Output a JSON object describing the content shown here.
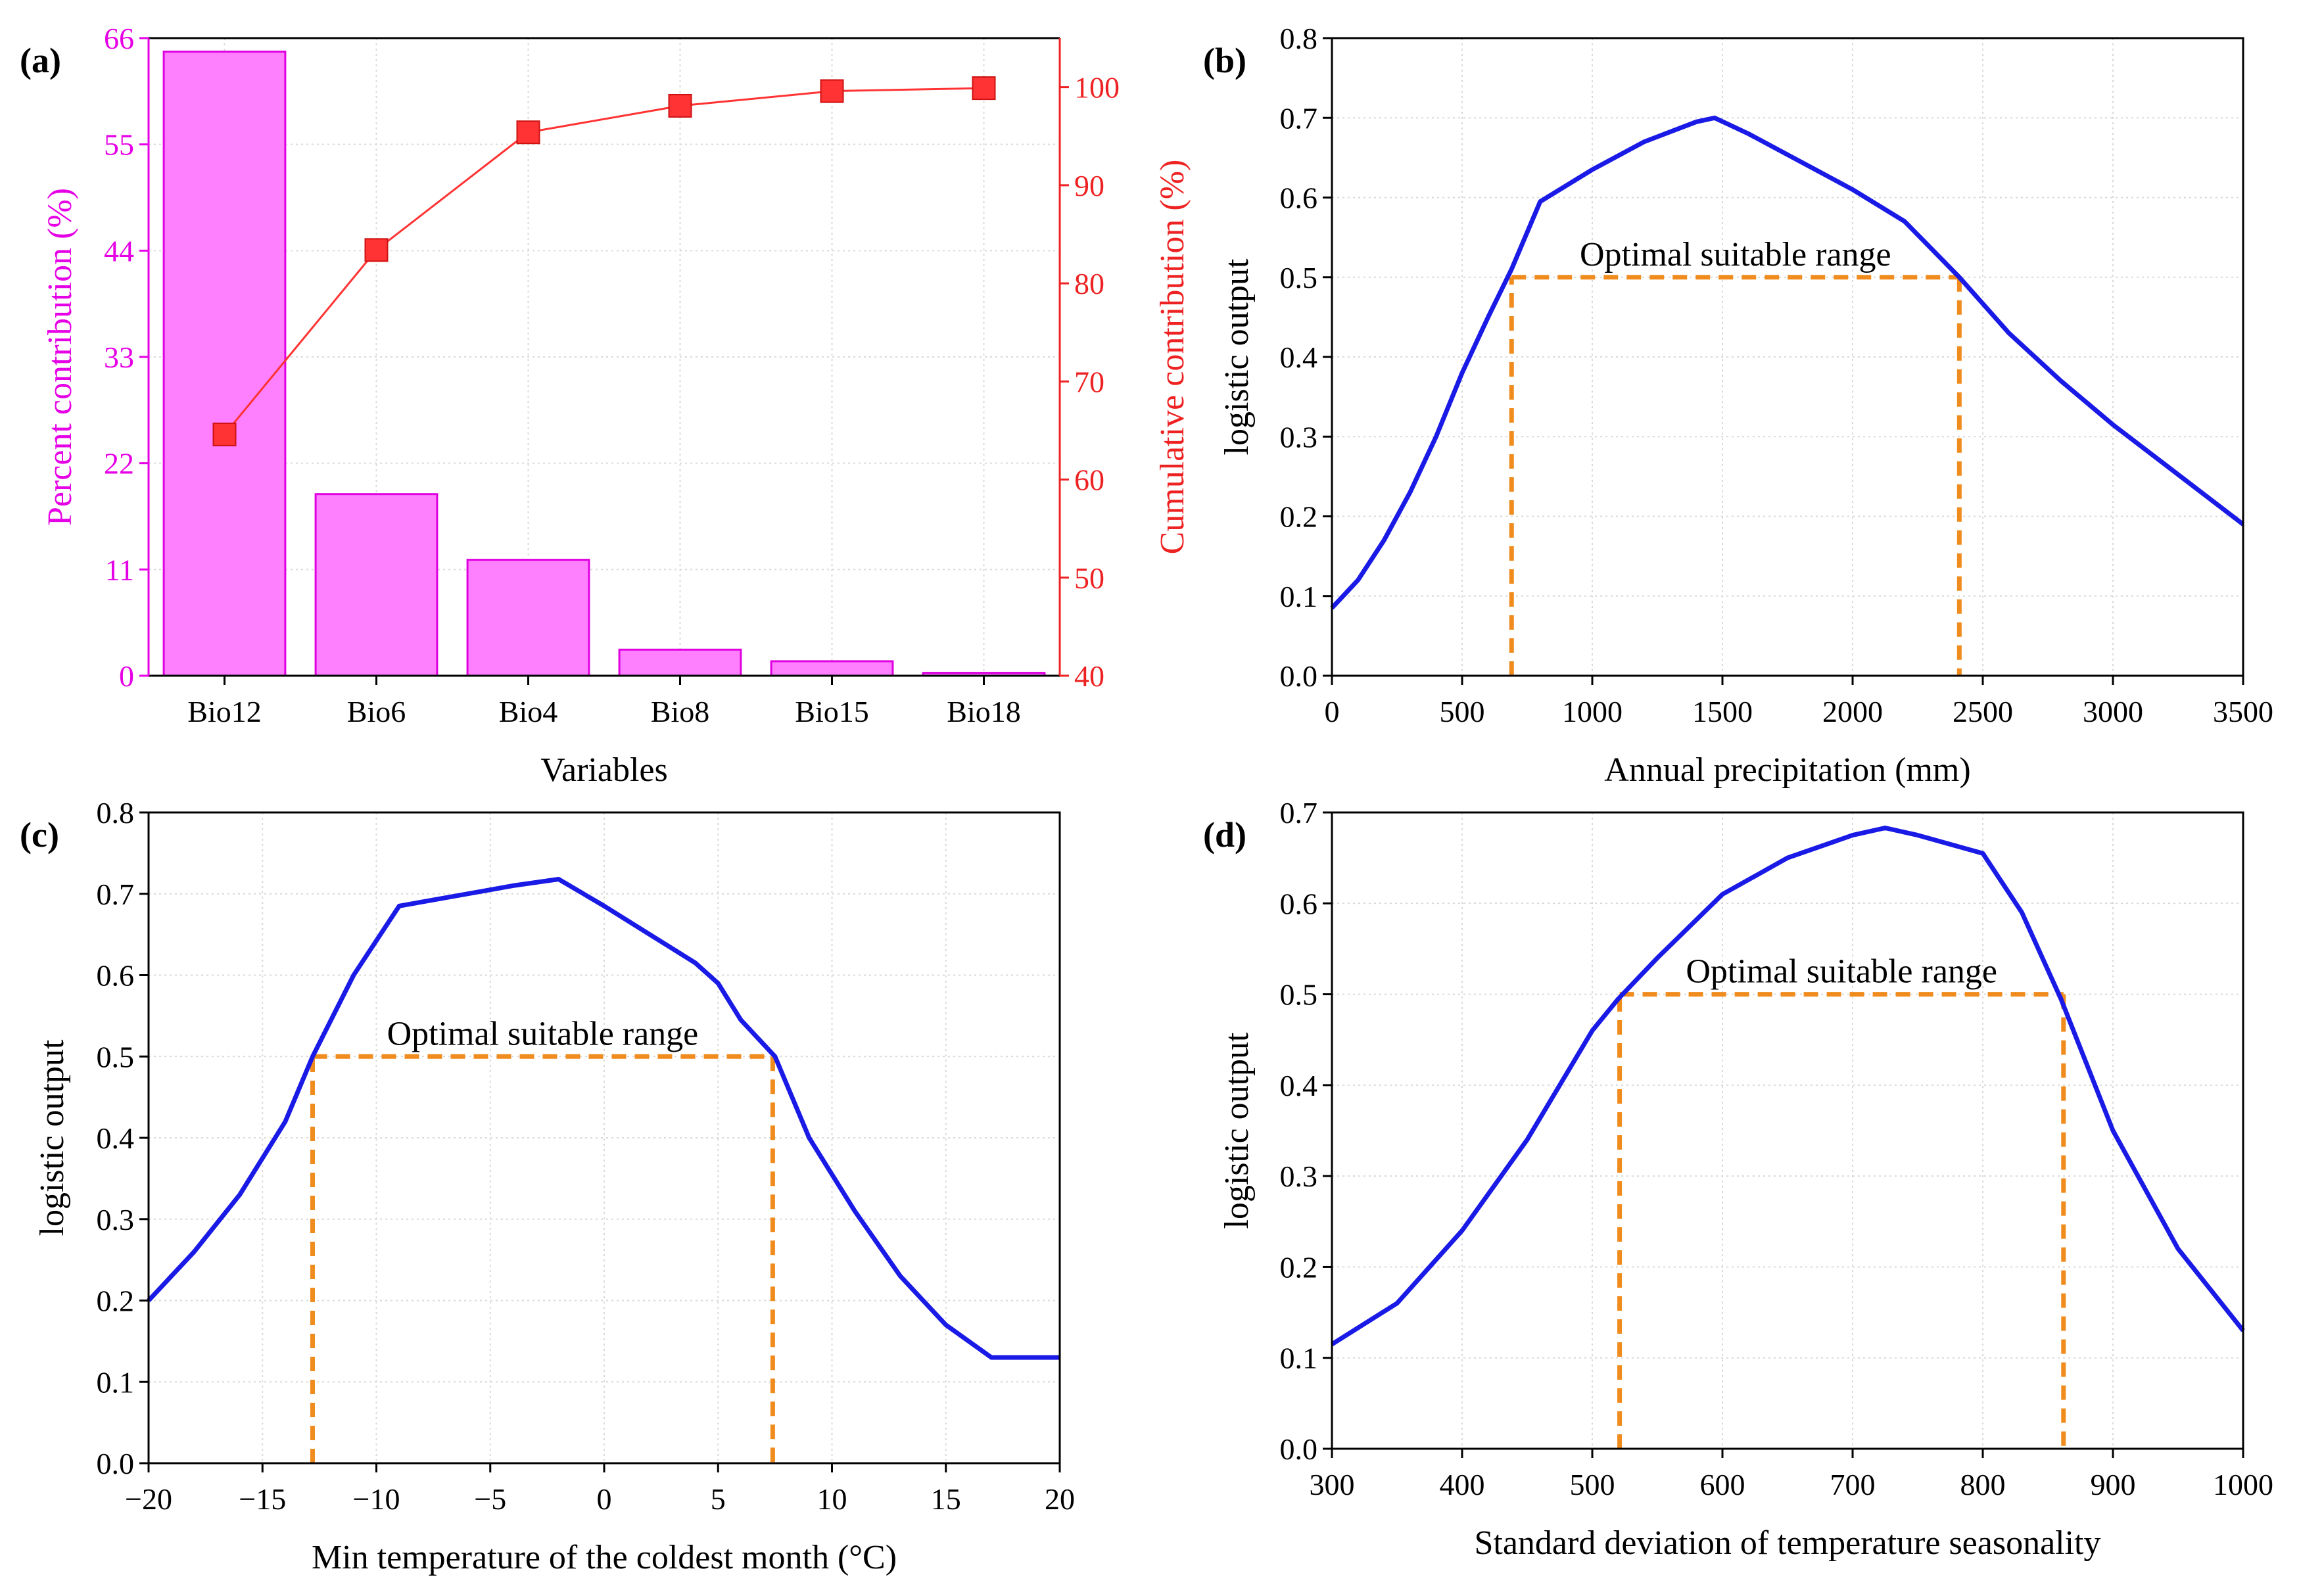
{
  "chart_data": [
    {
      "panel": "(a)",
      "type": "bar",
      "xlabel": "Variables",
      "ylabel": "Percent contribution (%)",
      "y2label": "Cumulative contribution (%)",
      "categories": [
        "Bio12",
        "Bio6",
        "Bio4",
        "Bio8",
        "Bio15",
        "Bio18"
      ],
      "ylim": [
        0,
        66
      ],
      "yticks": [
        "0",
        "11",
        "22",
        "33",
        "44",
        "55",
        "66"
      ],
      "y2lim": [
        40,
        105
      ],
      "y2ticks": [
        "40",
        "50",
        "60",
        "70",
        "80",
        "90",
        "100"
      ],
      "bar_values": [
        64.6,
        18.8,
        12.0,
        2.7,
        1.5,
        0.3
      ],
      "line_values": [
        64.6,
        83.4,
        95.4,
        98.1,
        99.6,
        99.9
      ],
      "bar_color": "#ff80ff",
      "bar_edge": "#e000e0",
      "line_color": "#ff3333",
      "left_axis_color": "#e600e6",
      "right_axis_color": "#ee2222",
      "grid": true
    },
    {
      "panel": "(b)",
      "type": "line",
      "xlabel": "Annual precipitation (mm)",
      "ylabel": "logistic output",
      "xlim": [
        0,
        3500
      ],
      "xticks": [
        "0",
        "500",
        "1000",
        "1500",
        "2000",
        "2500",
        "3000",
        "3500"
      ],
      "ylim": [
        0,
        0.8
      ],
      "yticks": [
        "0.0",
        "0.1",
        "0.2",
        "0.3",
        "0.4",
        "0.5",
        "0.6",
        "0.7",
        "0.8"
      ],
      "x": [
        0,
        100,
        200,
        300,
        400,
        500,
        600,
        690,
        800,
        1000,
        1200,
        1400,
        1470,
        1600,
        1800,
        2000,
        2200,
        2410,
        2600,
        2800,
        3000,
        3200,
        3400,
        3500
      ],
      "y": [
        0.085,
        0.12,
        0.17,
        0.23,
        0.3,
        0.38,
        0.45,
        0.51,
        0.595,
        0.635,
        0.67,
        0.695,
        0.7,
        0.68,
        0.645,
        0.61,
        0.57,
        0.5,
        0.43,
        0.37,
        0.315,
        0.265,
        0.215,
        0.19
      ],
      "range_label": "Optimal suitable range",
      "range": [
        690,
        2410
      ],
      "threshold": 0.5,
      "grid": true
    },
    {
      "panel": "(c)",
      "type": "line",
      "xlabel": "Min temperature of the coldest month (°C)",
      "ylabel": "logistic output",
      "xlim": [
        -20,
        20
      ],
      "xticks": [
        "−20",
        "−15",
        "−10",
        "−5",
        "0",
        "5",
        "10",
        "15",
        "20"
      ],
      "ylim": [
        0,
        0.8
      ],
      "yticks": [
        "0.0",
        "0.1",
        "0.2",
        "0.3",
        "0.4",
        "0.5",
        "0.6",
        "0.7",
        "0.8"
      ],
      "x": [
        -20,
        -18,
        -16,
        -14,
        -12.8,
        -11,
        -9,
        -6,
        -4,
        -2,
        0,
        2,
        4,
        5,
        6,
        7.5,
        9,
        11,
        13,
        15,
        17,
        20
      ],
      "y": [
        0.2,
        0.26,
        0.33,
        0.42,
        0.5,
        0.6,
        0.685,
        0.7,
        0.71,
        0.718,
        0.685,
        0.65,
        0.615,
        0.59,
        0.545,
        0.5,
        0.4,
        0.31,
        0.23,
        0.17,
        0.13,
        0.13
      ],
      "range_label": "Optimal suitable range",
      "range": [
        -12.8,
        7.4
      ],
      "threshold": 0.5,
      "grid": true
    },
    {
      "panel": "(d)",
      "type": "line",
      "xlabel": "Standard deviation of temperature seasonality",
      "ylabel": "logistic output",
      "xlim": [
        300,
        1000
      ],
      "xticks": [
        "300",
        "400",
        "500",
        "600",
        "700",
        "800",
        "900",
        "1000"
      ],
      "ylim": [
        0,
        0.7
      ],
      "yticks": [
        "0.0",
        "0.1",
        "0.2",
        "0.3",
        "0.4",
        "0.5",
        "0.6",
        "0.7"
      ],
      "x": [
        300,
        350,
        400,
        450,
        500,
        520,
        550,
        600,
        650,
        700,
        725,
        750,
        800,
        830,
        860,
        900,
        950,
        1000
      ],
      "y": [
        0.115,
        0.16,
        0.24,
        0.34,
        0.46,
        0.495,
        0.54,
        0.61,
        0.65,
        0.675,
        0.683,
        0.675,
        0.655,
        0.59,
        0.495,
        0.35,
        0.22,
        0.13
      ],
      "range_label": "Optimal suitable range",
      "range": [
        521,
        862
      ],
      "threshold": 0.5,
      "grid": true
    }
  ],
  "colors": {
    "curve": "#1a1ae6",
    "range_line": "#f08c1e",
    "grid": "#d9d9d9",
    "axis": "#000000"
  }
}
